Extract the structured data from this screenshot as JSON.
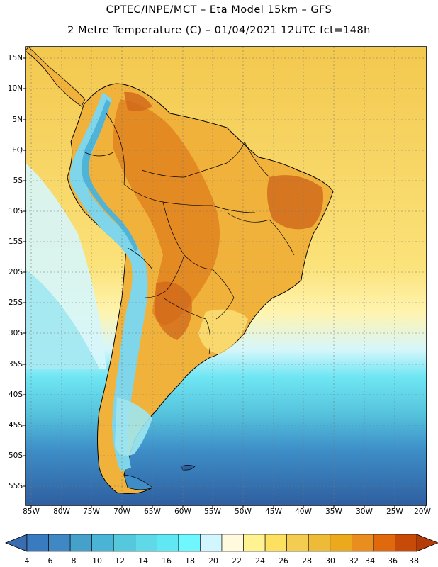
{
  "title": {
    "line1": "CPTEC/INPE/MCT –   Eta Model 15km – GFS",
    "line2": "2 Metre Temperature (C) – 01/04/2021 12UTC fct=148h"
  },
  "lat_labels": [
    "15N",
    "10N",
    "5N",
    "EQ",
    "5S",
    "10S",
    "15S",
    "20S",
    "25S",
    "30S",
    "35S",
    "40S",
    "45S",
    "50S",
    "55S"
  ],
  "lon_labels": [
    "85W",
    "80W",
    "75W",
    "70W",
    "65W",
    "60W",
    "55W",
    "50W",
    "45W",
    "40W",
    "35W",
    "30W",
    "25W",
    "20W"
  ],
  "colorbar": {
    "labels": [
      "4",
      "6",
      "8",
      "10",
      "12",
      "14",
      "16",
      "18",
      "20",
      "22",
      "24",
      "26",
      "28",
      "30",
      "32",
      "34",
      "36",
      "38"
    ],
    "colors": [
      "#3a7abf",
      "#3f88c4",
      "#45a0ca",
      "#4ab4d6",
      "#55c8de",
      "#5fd9e8",
      "#5fe8f4",
      "#6ef7ff",
      "#d2f6ff",
      "#fffadd",
      "#fff293",
      "#fde060",
      "#f4cc50",
      "#eebb38",
      "#ebaa1e",
      "#e88d1e",
      "#e0680d",
      "#c84a09"
    ],
    "low_color": "#3a6cb0",
    "high_color": "#b53c09"
  },
  "map": {
    "ocean_colors": {
      "cold": "#2f5fa0",
      "cool": "#3d8ec8",
      "mild": "#56c3dd",
      "cyan": "#6fe6f3",
      "pale": "#d6f6fb",
      "warm": "#fbe27a",
      "hot": "#f3c84e"
    },
    "land_colors": {
      "base": "#f0b23a",
      "hot": "#e08320",
      "hotter": "#d1661a",
      "andes": "#7fd6ea",
      "andes_core": "#4fb4d8",
      "patagonia": "#9ee6f0"
    }
  }
}
